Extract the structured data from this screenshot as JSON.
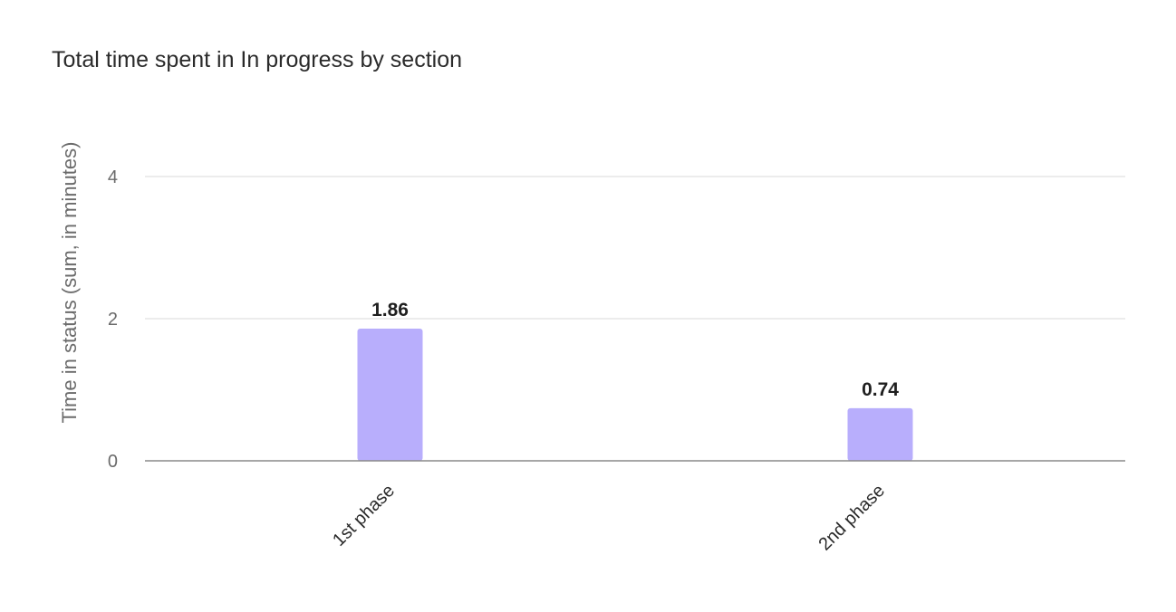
{
  "chart_data": {
    "type": "bar",
    "title": "Total time spent in In progress by section",
    "ylabel": "Time in status (sum, in minutes)",
    "xlabel": "",
    "categories": [
      "1st phase",
      "2nd phase"
    ],
    "values": [
      1.86,
      0.74
    ],
    "data_labels": [
      "1.86",
      "0.74"
    ],
    "ylim": [
      0,
      4
    ],
    "yticks": [
      0,
      2,
      4
    ],
    "grid": true,
    "legend": "none",
    "colors": {
      "bar": "#b8aefc",
      "grid": "#e6e6e6",
      "axis": "#8a8a8a"
    }
  }
}
